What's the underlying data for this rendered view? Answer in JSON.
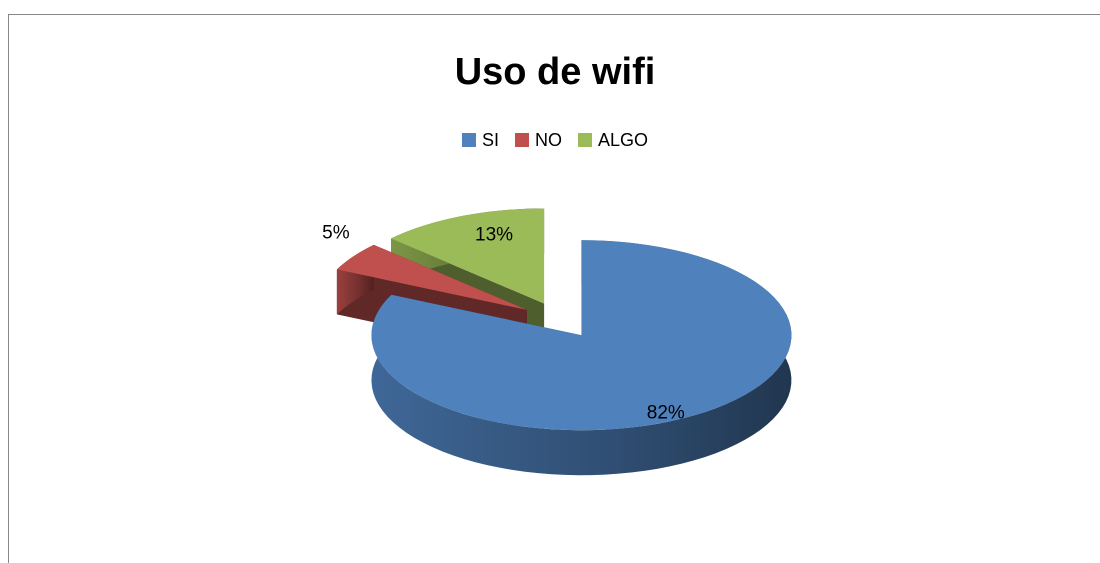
{
  "chart_data": {
    "type": "pie",
    "title": "Uso de wifi",
    "categories": [
      "SI",
      "NO",
      "ALGO"
    ],
    "values": [
      82,
      5,
      13
    ],
    "value_labels": [
      "82%",
      "5%",
      "13%"
    ],
    "colors": [
      "#4f81bd",
      "#c0504d",
      "#9bbb59"
    ],
    "legend": "top"
  }
}
